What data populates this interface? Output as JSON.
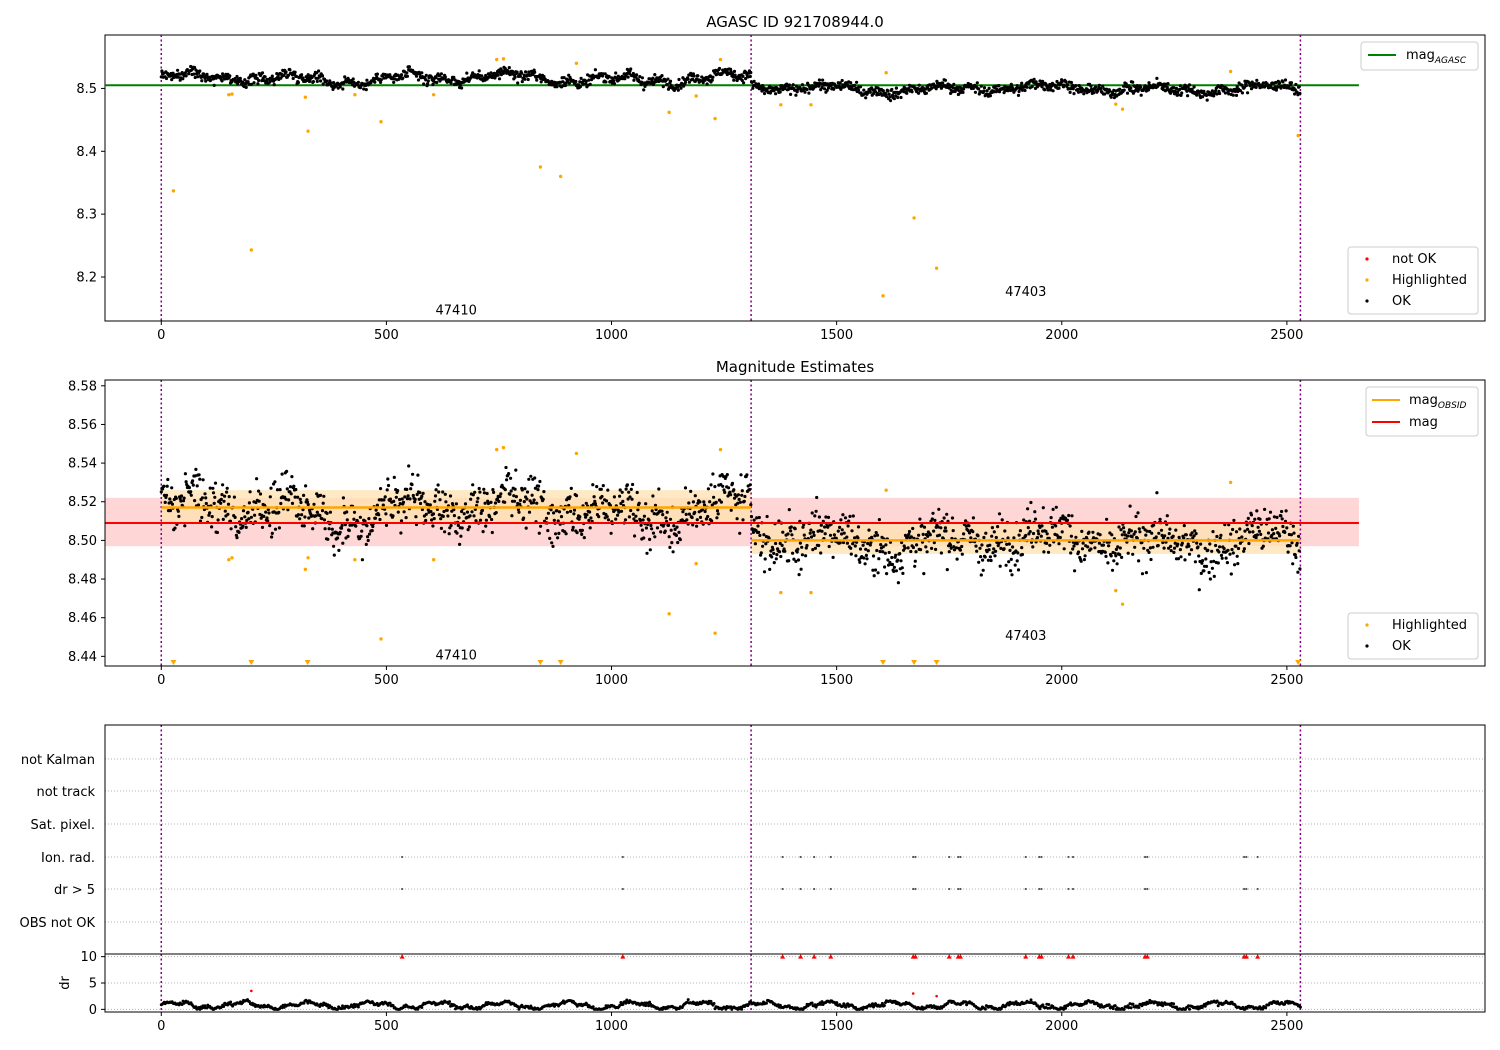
{
  "figure": {
    "title": "AGASC ID 921708944.0",
    "colors": {
      "ok": "#000000",
      "highlighted": "#ffa500",
      "not_ok": "#ff0000",
      "mag_agasc": "#008000",
      "mag_obsid": "#ffa500",
      "mag": "#ff0000",
      "obsid_boundary": "#800080"
    }
  },
  "chart_data": [
    {
      "type": "scatter",
      "title": "AGASC ID 921708944.0",
      "xlim": [
        -125,
        2940
      ],
      "ylim": [
        8.13,
        8.585
      ],
      "xticks": [
        0,
        500,
        1000,
        1500,
        2000,
        2500
      ],
      "yticks": [
        8.2,
        8.3,
        8.4,
        8.5
      ],
      "ytick_labels": [
        "8.2",
        "8.3",
        "8.4",
        "8.5"
      ],
      "obsid_boundaries": [
        0,
        1310,
        2530
      ],
      "obsids": [
        {
          "label": "47410",
          "x": 655,
          "y": 8.148
        },
        {
          "label": "47403",
          "x": 1920,
          "y": 8.178
        }
      ],
      "mag_agasc": {
        "value": 8.505,
        "x_range": [
          -125,
          2660
        ]
      },
      "segment_means": [
        8.516,
        8.5
      ],
      "ok_spread": 0.0075,
      "highlighted": [
        {
          "x": 27,
          "y": 8.337
        },
        {
          "x": 200,
          "y": 8.243
        },
        {
          "x": 150,
          "y": 8.49
        },
        {
          "x": 157,
          "y": 8.491
        },
        {
          "x": 320,
          "y": 8.486
        },
        {
          "x": 326,
          "y": 8.432
        },
        {
          "x": 430,
          "y": 8.49
        },
        {
          "x": 488,
          "y": 8.447
        },
        {
          "x": 605,
          "y": 8.49
        },
        {
          "x": 745,
          "y": 8.546
        },
        {
          "x": 760,
          "y": 8.547
        },
        {
          "x": 842,
          "y": 8.375
        },
        {
          "x": 887,
          "y": 8.36
        },
        {
          "x": 922,
          "y": 8.54
        },
        {
          "x": 1128,
          "y": 8.462
        },
        {
          "x": 1188,
          "y": 8.488
        },
        {
          "x": 1230,
          "y": 8.452
        },
        {
          "x": 1242,
          "y": 8.546
        },
        {
          "x": 1376,
          "y": 8.474
        },
        {
          "x": 1443,
          "y": 8.474
        },
        {
          "x": 1603,
          "y": 8.17
        },
        {
          "x": 1610,
          "y": 8.525
        },
        {
          "x": 1672,
          "y": 8.294
        },
        {
          "x": 1722,
          "y": 8.214
        },
        {
          "x": 2120,
          "y": 8.475
        },
        {
          "x": 2135,
          "y": 8.467
        },
        {
          "x": 2375,
          "y": 8.527
        },
        {
          "x": 2525,
          "y": 8.425
        }
      ],
      "legend": {
        "placement": "lower-right",
        "entries": [
          "not OK",
          "Highlighted",
          "OK"
        ]
      },
      "line_legend": {
        "placement": "upper-right",
        "entries": [
          "mag",
          "AGASC"
        ]
      }
    },
    {
      "type": "scatter",
      "title": "Magnitude Estimates",
      "xlim": [
        -125,
        2940
      ],
      "ylim": [
        8.435,
        8.583
      ],
      "xticks": [
        0,
        500,
        1000,
        1500,
        2000,
        2500
      ],
      "yticks": [
        8.44,
        8.46,
        8.48,
        8.5,
        8.52,
        8.54,
        8.56,
        8.58
      ],
      "ytick_labels": [
        "8.44",
        "8.46",
        "8.48",
        "8.50",
        "8.52",
        "8.54",
        "8.56",
        "8.58"
      ],
      "obsid_boundaries": [
        0,
        1310,
        2530
      ],
      "obsids": [
        {
          "label": "47410",
          "x": 655,
          "y": 8.441
        },
        {
          "label": "47403",
          "x": 1920,
          "y": 8.451
        }
      ],
      "mag": {
        "value": 8.509,
        "band": [
          8.497,
          8.522
        ],
        "x_range": [
          -125,
          2660
        ]
      },
      "mag_obsid": [
        {
          "x_range": [
            0,
            1310
          ],
          "value": 8.517,
          "band": [
            8.509,
            8.526
          ]
        },
        {
          "x_range": [
            1310,
            2530
          ],
          "value": 8.5,
          "band": [
            8.493,
            8.509
          ]
        }
      ],
      "segment_means": [
        8.516,
        8.5
      ],
      "ok_spread": 0.011,
      "highlighted": [
        {
          "x": 150,
          "y": 8.49
        },
        {
          "x": 157,
          "y": 8.491
        },
        {
          "x": 320,
          "y": 8.485
        },
        {
          "x": 326,
          "y": 8.491
        },
        {
          "x": 430,
          "y": 8.49
        },
        {
          "x": 488,
          "y": 8.449
        },
        {
          "x": 605,
          "y": 8.49
        },
        {
          "x": 745,
          "y": 8.547
        },
        {
          "x": 760,
          "y": 8.548
        },
        {
          "x": 922,
          "y": 8.545
        },
        {
          "x": 1128,
          "y": 8.462
        },
        {
          "x": 1188,
          "y": 8.488
        },
        {
          "x": 1230,
          "y": 8.452
        },
        {
          "x": 1242,
          "y": 8.547
        },
        {
          "x": 1376,
          "y": 8.473
        },
        {
          "x": 1443,
          "y": 8.473
        },
        {
          "x": 1610,
          "y": 8.526
        },
        {
          "x": 2120,
          "y": 8.474
        },
        {
          "x": 2135,
          "y": 8.467
        },
        {
          "x": 2375,
          "y": 8.53
        }
      ],
      "below_range_markers": [
        27,
        200,
        325,
        842,
        887,
        1603,
        1672,
        1722,
        2525
      ],
      "legend": {
        "placement": "lower-right",
        "entries": [
          "Highlighted",
          "OK"
        ]
      },
      "line_legend": {
        "placement": "upper-right",
        "entries": [
          "mag",
          "OBSID",
          "mag"
        ]
      }
    },
    {
      "type": "scatter",
      "title": "",
      "xlim": [
        -125,
        2940
      ],
      "xticks": [
        0,
        500,
        1000,
        1500,
        2000,
        2500
      ],
      "obsid_boundaries": [
        0,
        1310,
        2530
      ],
      "flag_rows": [
        "not Kalman",
        "not track",
        "Sat. pixel.",
        "Ion. rad.",
        "dr > 5",
        "OBS not OK"
      ],
      "flag_events": {
        "Ion. rad.": [
          535,
          1025,
          1380,
          1420,
          1450,
          1487,
          1670,
          1675,
          1750,
          1770,
          1775,
          1920,
          1950,
          1955,
          2015,
          2025,
          2185,
          2190,
          2405,
          2410,
          2435
        ],
        "dr > 5": [
          535,
          1025,
          1380,
          1420,
          1450,
          1487,
          1670,
          1675,
          1750,
          1770,
          1775,
          1920,
          1950,
          1955,
          2015,
          2025,
          2185,
          2190,
          2405,
          2410,
          2435
        ]
      }
    },
    {
      "type": "scatter",
      "title": "",
      "ylabel": "dr",
      "xlim": [
        -125,
        2940
      ],
      "ylim": [
        -0.5,
        10.5
      ],
      "xticks": [
        0,
        500,
        1000,
        1500,
        2000,
        2500
      ],
      "yticks": [
        0,
        5,
        10
      ],
      "ytick_labels": [
        "0",
        "5",
        "10"
      ],
      "obsid_boundaries": [
        0,
        1310,
        2530
      ],
      "dr_clipped_at": 10,
      "dr_clipped_x": [
        535,
        1025,
        1380,
        1420,
        1450,
        1487,
        1670,
        1675,
        1750,
        1770,
        1775,
        1920,
        1950,
        1955,
        2015,
        2025,
        2185,
        2190,
        2405,
        2410,
        2435
      ],
      "dr_outliers": [
        {
          "x": 200,
          "y": 3.5
        },
        {
          "x": 1670,
          "y": 3.0
        },
        {
          "x": 1722,
          "y": 2.5
        }
      ]
    }
  ]
}
